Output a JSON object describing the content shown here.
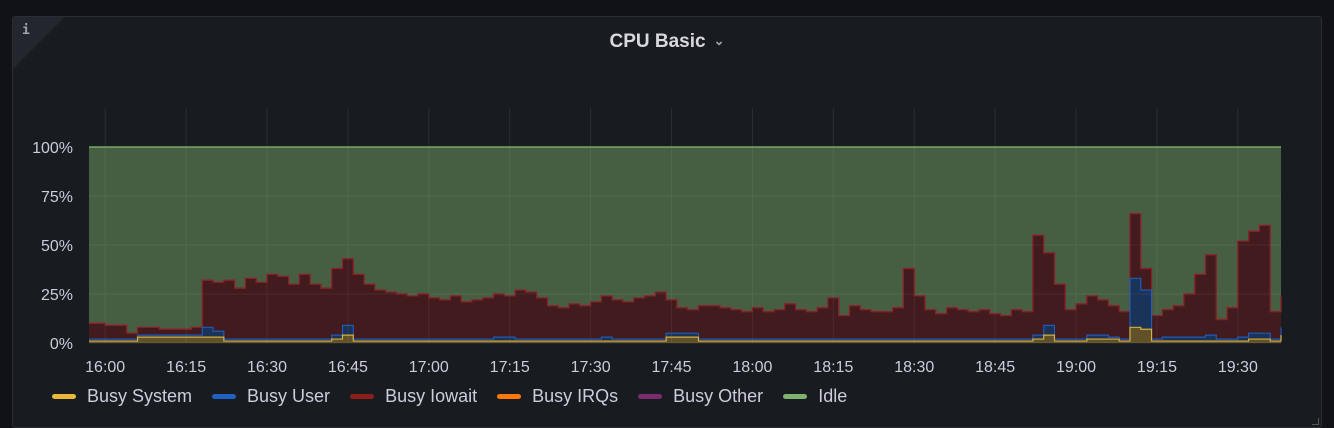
{
  "panel": {
    "title": "CPU Basic",
    "info_icon": "info-icon",
    "menu_icon": "chevron-down-icon"
  },
  "chart_data": {
    "type": "area",
    "stacked": true,
    "title": "CPU Basic",
    "xlabel": "",
    "ylabel": "",
    "ylim": [
      0,
      100
    ],
    "y_ticks": [
      "0%",
      "25%",
      "50%",
      "75%",
      "100%"
    ],
    "y_tick_values": [
      0,
      25,
      50,
      75,
      100
    ],
    "x_ticks": [
      "16:00",
      "16:15",
      "16:30",
      "16:45",
      "17:00",
      "17:15",
      "17:30",
      "17:45",
      "18:00",
      "18:15",
      "18:30",
      "18:45",
      "19:00",
      "19:15",
      "19:30"
    ],
    "x_range": [
      "15:57",
      "19:38"
    ],
    "grid": true,
    "legend_position": "bottom",
    "series": [
      {
        "name": "Busy System",
        "color": "#EAB839"
      },
      {
        "name": "Busy User",
        "color": "#1F60C4"
      },
      {
        "name": "Busy Iowait",
        "color": "#8F1E1A"
      },
      {
        "name": "Busy IRQs",
        "color": "#FF780A"
      },
      {
        "name": "Busy Other",
        "color": "#7A2C6E"
      },
      {
        "name": "Idle",
        "color": "#7EB26D"
      }
    ],
    "point_fields": [
      "time",
      "Busy System",
      "Busy User",
      "Busy Iowait"
    ],
    "points": [
      [
        "15:58",
        1,
        1,
        8
      ],
      [
        "16:00",
        1,
        1,
        7
      ],
      [
        "16:02",
        1,
        1,
        7
      ],
      [
        "16:04",
        1,
        1,
        3
      ],
      [
        "16:06",
        3,
        1,
        4
      ],
      [
        "16:08",
        3,
        1,
        4
      ],
      [
        "16:10",
        3,
        1,
        3
      ],
      [
        "16:12",
        3,
        1,
        3
      ],
      [
        "16:14",
        3,
        1,
        3
      ],
      [
        "16:16",
        3,
        1,
        4
      ],
      [
        "16:18",
        3,
        5,
        24
      ],
      [
        "16:20",
        3,
        3,
        25
      ],
      [
        "16:22",
        1,
        1,
        30
      ],
      [
        "16:24",
        1,
        1,
        26
      ],
      [
        "16:26",
        1,
        1,
        31
      ],
      [
        "16:28",
        1,
        1,
        29
      ],
      [
        "16:30",
        1,
        1,
        33
      ],
      [
        "16:32",
        1,
        1,
        32
      ],
      [
        "16:34",
        1,
        1,
        28
      ],
      [
        "16:36",
        1,
        1,
        33
      ],
      [
        "16:38",
        1,
        1,
        28
      ],
      [
        "16:40",
        1,
        1,
        26
      ],
      [
        "16:42",
        2,
        2,
        34
      ],
      [
        "16:44",
        4,
        5,
        34
      ],
      [
        "16:46",
        1,
        1,
        33
      ],
      [
        "16:48",
        1,
        1,
        28
      ],
      [
        "16:50",
        1,
        1,
        25
      ],
      [
        "16:52",
        1,
        1,
        24
      ],
      [
        "16:54",
        1,
        1,
        23
      ],
      [
        "16:56",
        1,
        1,
        22
      ],
      [
        "16:58",
        1,
        1,
        23
      ],
      [
        "17:00",
        1,
        1,
        21
      ],
      [
        "17:02",
        1,
        1,
        20
      ],
      [
        "17:04",
        1,
        1,
        22
      ],
      [
        "17:06",
        1,
        1,
        19
      ],
      [
        "17:08",
        1,
        1,
        20
      ],
      [
        "17:10",
        1,
        1,
        21
      ],
      [
        "17:12",
        1,
        2,
        22
      ],
      [
        "17:14",
        1,
        2,
        21
      ],
      [
        "17:16",
        1,
        1,
        25
      ],
      [
        "17:18",
        1,
        1,
        24
      ],
      [
        "17:20",
        1,
        1,
        21
      ],
      [
        "17:22",
        1,
        1,
        17
      ],
      [
        "17:24",
        1,
        1,
        16
      ],
      [
        "17:26",
        1,
        1,
        18
      ],
      [
        "17:28",
        1,
        1,
        17
      ],
      [
        "17:30",
        1,
        1,
        19
      ],
      [
        "17:32",
        1,
        2,
        21
      ],
      [
        "17:34",
        1,
        1,
        20
      ],
      [
        "17:36",
        1,
        1,
        19
      ],
      [
        "17:38",
        1,
        1,
        21
      ],
      [
        "17:40",
        1,
        1,
        22
      ],
      [
        "17:42",
        1,
        1,
        24
      ],
      [
        "17:44",
        3,
        2,
        17
      ],
      [
        "17:46",
        3,
        2,
        13
      ],
      [
        "17:48",
        3,
        2,
        12
      ],
      [
        "17:50",
        1,
        1,
        17
      ],
      [
        "17:52",
        1,
        1,
        17
      ],
      [
        "17:54",
        1,
        1,
        16
      ],
      [
        "17:56",
        1,
        1,
        15
      ],
      [
        "17:58",
        1,
        1,
        14
      ],
      [
        "18:00",
        1,
        1,
        16
      ],
      [
        "18:02",
        1,
        1,
        14
      ],
      [
        "18:04",
        1,
        1,
        15
      ],
      [
        "18:06",
        1,
        1,
        18
      ],
      [
        "18:08",
        1,
        1,
        15
      ],
      [
        "18:10",
        1,
        1,
        14
      ],
      [
        "18:12",
        1,
        1,
        16
      ],
      [
        "18:14",
        1,
        1,
        21
      ],
      [
        "18:16",
        1,
        1,
        12
      ],
      [
        "18:18",
        1,
        1,
        17
      ],
      [
        "18:20",
        1,
        1,
        15
      ],
      [
        "18:22",
        1,
        1,
        14
      ],
      [
        "18:24",
        1,
        1,
        14
      ],
      [
        "18:26",
        1,
        1,
        16
      ],
      [
        "18:28",
        1,
        1,
        36
      ],
      [
        "18:30",
        1,
        1,
        22
      ],
      [
        "18:32",
        1,
        1,
        15
      ],
      [
        "18:34",
        1,
        1,
        13
      ],
      [
        "18:36",
        1,
        1,
        16
      ],
      [
        "18:38",
        1,
        1,
        15
      ],
      [
        "18:40",
        1,
        1,
        14
      ],
      [
        "18:42",
        1,
        1,
        15
      ],
      [
        "18:44",
        1,
        1,
        13
      ],
      [
        "18:46",
        1,
        1,
        12
      ],
      [
        "18:48",
        1,
        1,
        15
      ],
      [
        "18:50",
        1,
        1,
        14
      ],
      [
        "18:52",
        2,
        2,
        51
      ],
      [
        "18:54",
        4,
        5,
        37
      ],
      [
        "18:56",
        1,
        1,
        28
      ],
      [
        "18:58",
        1,
        1,
        15
      ],
      [
        "19:00",
        1,
        1,
        18
      ],
      [
        "19:02",
        2,
        2,
        20
      ],
      [
        "19:04",
        2,
        2,
        18
      ],
      [
        "19:06",
        2,
        1,
        16
      ],
      [
        "19:08",
        1,
        1,
        14
      ],
      [
        "19:10",
        8,
        25,
        33
      ],
      [
        "19:12",
        7,
        20,
        11
      ],
      [
        "19:14",
        1,
        1,
        12
      ],
      [
        "19:16",
        1,
        2,
        14
      ],
      [
        "19:18",
        1,
        2,
        16
      ],
      [
        "19:20",
        1,
        2,
        22
      ],
      [
        "19:22",
        1,
        2,
        32
      ],
      [
        "19:24",
        1,
        3,
        41
      ],
      [
        "19:26",
        1,
        1,
        10
      ],
      [
        "19:28",
        1,
        1,
        16
      ],
      [
        "19:30",
        1,
        2,
        49
      ],
      [
        "19:32",
        2,
        3,
        52
      ],
      [
        "19:34",
        2,
        3,
        55
      ],
      [
        "19:36",
        1,
        1,
        14
      ],
      [
        "19:38",
        4,
        4,
        16
      ]
    ]
  }
}
